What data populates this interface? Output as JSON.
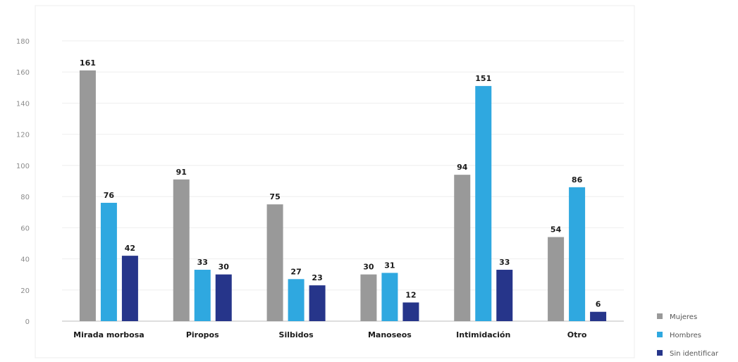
{
  "chart_data": {
    "type": "bar",
    "title": "",
    "xlabel": "",
    "ylabel": "",
    "ylim": [
      0,
      180
    ],
    "yticks": [
      0,
      20,
      40,
      60,
      80,
      100,
      120,
      140,
      160,
      180
    ],
    "grid": true,
    "legend_position": "bottom-right",
    "categories": [
      "Mirada morbosa",
      "Piropos",
      "Silbidos",
      "Manoseos",
      "Intimidación",
      "Otro"
    ],
    "series": [
      {
        "name": "Mujeres",
        "color": "#999999",
        "values": [
          161,
          91,
          75,
          30,
          94,
          54
        ]
      },
      {
        "name": "Hombres",
        "color": "#2fa8e0",
        "values": [
          76,
          33,
          27,
          31,
          151,
          86
        ]
      },
      {
        "name": "Sin identificar",
        "color": "#26358a",
        "values": [
          42,
          30,
          23,
          12,
          33,
          6
        ]
      }
    ]
  }
}
